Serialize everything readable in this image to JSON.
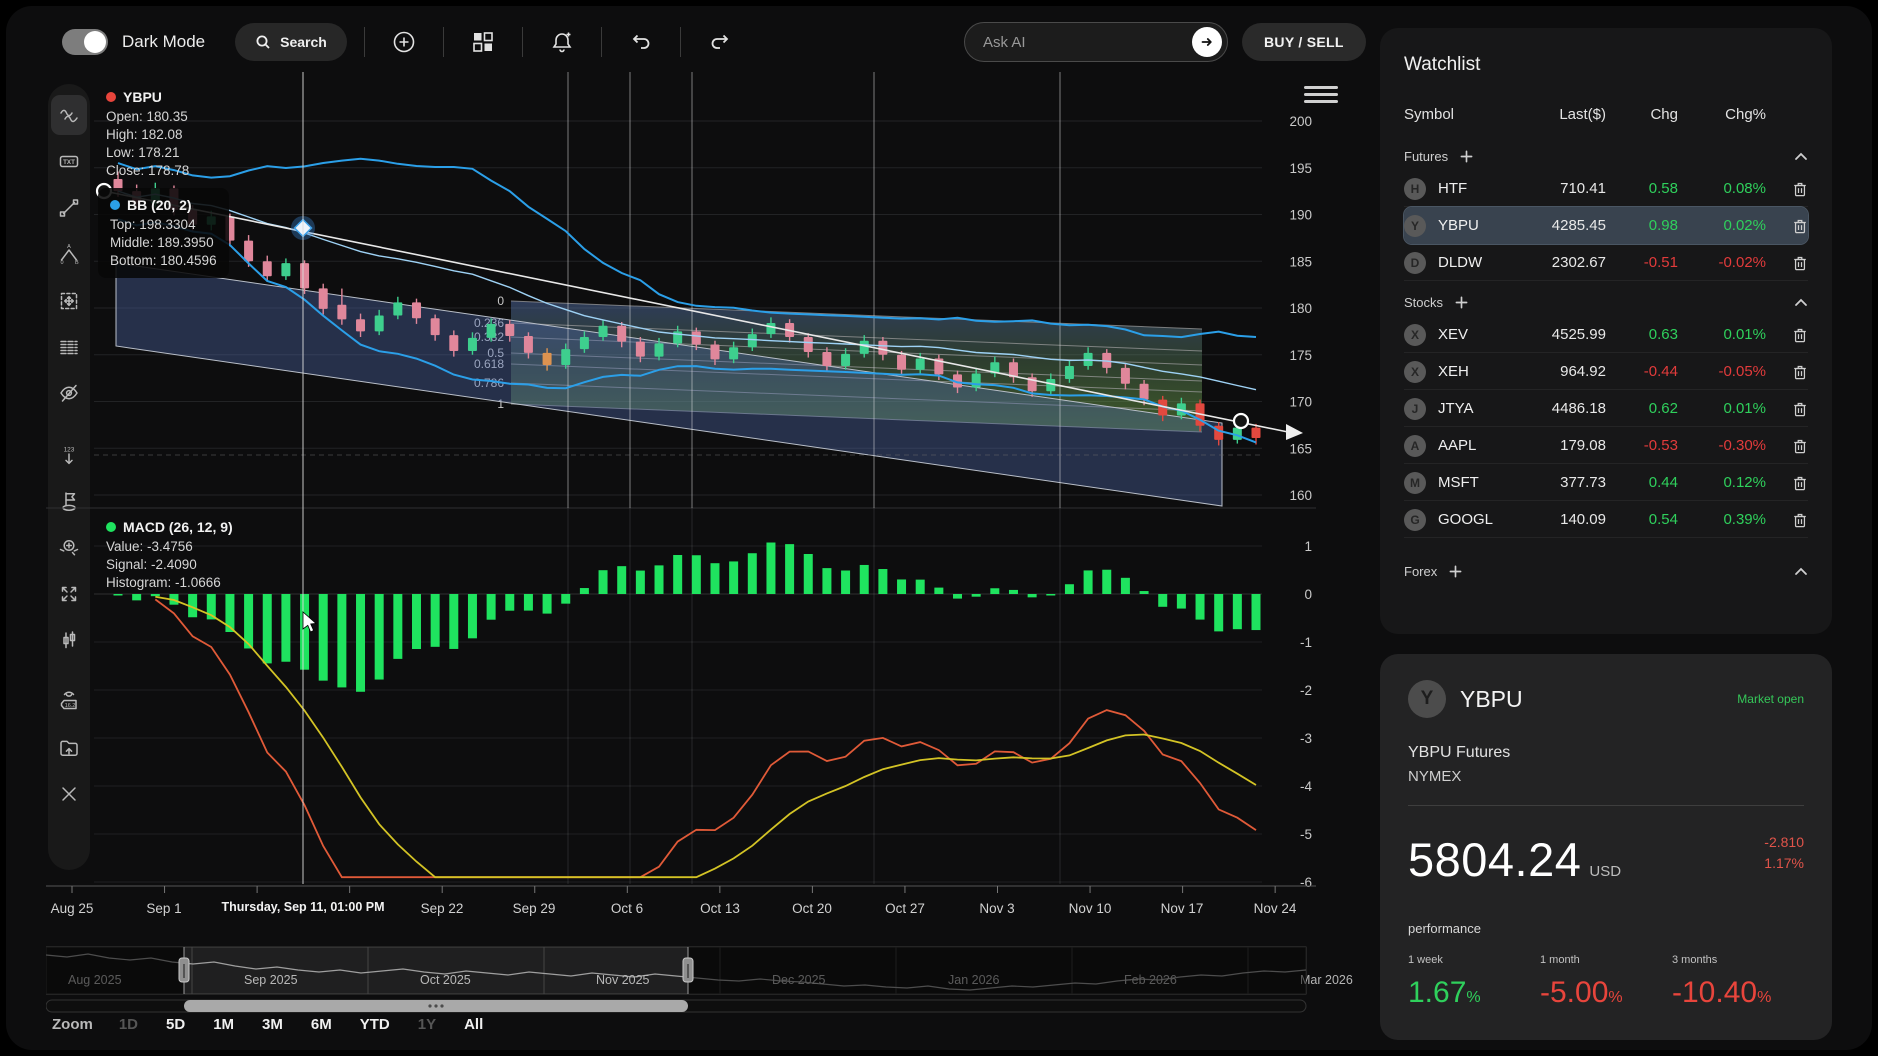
{
  "toolbar": {
    "dark_mode_label": "Dark Mode",
    "search_label": "Search",
    "ask_ai_placeholder": "Ask AI",
    "buy_sell_label": "BUY / SELL"
  },
  "sidebar": {
    "txt_icon_label": "TXT",
    "numbers_icon_label": "123",
    "price_tag_icon_label": "16.2",
    "xabcd_a": "A",
    "xabcd_0": "0",
    "xabcd_b": "B"
  },
  "legends": {
    "ybpu": {
      "title": "YBPU",
      "lines": [
        "Open: 180.35",
        "High: 182.08",
        "Low: 178.21",
        "Close: 178.78"
      ]
    },
    "bb": {
      "title": "BB (20, 2)",
      "lines": [
        "Top: 198.3304",
        "Middle: 189.3950",
        "Bottom: 180.4596"
      ]
    },
    "macd": {
      "title": "MACD (26, 12, 9)",
      "lines": [
        "Value: -3.4756",
        "Signal: -2.4090",
        "Histogram: -1.0666"
      ]
    }
  },
  "crosshair_label": "Thursday, Sep 11, 01:00 PM",
  "range_selector": {
    "zoom_label": "Zoom",
    "buttons": [
      {
        "label": "1D",
        "enabled": false
      },
      {
        "label": "5D",
        "enabled": true
      },
      {
        "label": "1M",
        "enabled": true
      },
      {
        "label": "3M",
        "enabled": true
      },
      {
        "label": "6M",
        "enabled": true
      },
      {
        "label": "YTD",
        "enabled": true
      },
      {
        "label": "1Y",
        "enabled": false
      },
      {
        "label": "All",
        "enabled": true
      }
    ]
  },
  "watchlist": {
    "title": "Watchlist",
    "columns": [
      "Symbol",
      "Last($)",
      "Chg",
      "Chg%"
    ],
    "sections": [
      {
        "name": "Futures",
        "rows": [
          {
            "symbol": "HTF",
            "avatar": "H",
            "last": "710.41",
            "chg": "0.58",
            "chg_pct": "0.08%",
            "direction": "up",
            "selected": false
          },
          {
            "symbol": "YBPU",
            "avatar": "Y",
            "last": "4285.45",
            "chg": "0.98",
            "chg_pct": "0.02%",
            "direction": "up",
            "selected": true
          },
          {
            "symbol": "DLDW",
            "avatar": "D",
            "last": "2302.67",
            "chg": "-0.51",
            "chg_pct": "-0.02%",
            "direction": "down",
            "selected": false
          }
        ]
      },
      {
        "name": "Stocks",
        "rows": [
          {
            "symbol": "XEV",
            "avatar": "X",
            "last": "4525.99",
            "chg": "0.63",
            "chg_pct": "0.01%",
            "direction": "up",
            "selected": false
          },
          {
            "symbol": "XEH",
            "avatar": "X",
            "last": "964.92",
            "chg": "-0.44",
            "chg_pct": "-0.05%",
            "direction": "down",
            "selected": false
          },
          {
            "symbol": "JTYA",
            "avatar": "J",
            "last": "4486.18",
            "chg": "0.62",
            "chg_pct": "0.01%",
            "direction": "up",
            "selected": false
          },
          {
            "symbol": "AAPL",
            "avatar": "A",
            "last": "179.08",
            "chg": "-0.53",
            "chg_pct": "-0.30%",
            "direction": "down",
            "selected": false
          },
          {
            "symbol": "MSFT",
            "avatar": "M",
            "last": "377.73",
            "chg": "0.44",
            "chg_pct": "0.12%",
            "direction": "up",
            "selected": false
          },
          {
            "symbol": "GOOGL",
            "avatar": "G",
            "last": "140.09",
            "chg": "0.54",
            "chg_pct": "0.39%",
            "direction": "up",
            "selected": false
          }
        ]
      },
      {
        "name": "Forex",
        "rows": []
      }
    ]
  },
  "detail_card": {
    "symbol": "YBPU",
    "avatar": "Y",
    "market_status": "Market open",
    "name": "YBPU Futures",
    "exchange": "NYMEX",
    "price": "5804.24",
    "currency": "USD",
    "change": "-2.810",
    "change_pct": "1.17%",
    "performance_label": "performance",
    "performance": [
      {
        "label": "1 week",
        "value": "1.67",
        "suffix": "%",
        "direction": "up"
      },
      {
        "label": "1 month",
        "value": "-5.00",
        "suffix": "%",
        "direction": "down"
      },
      {
        "label": "3 months",
        "value": "-10.40",
        "suffix": "%",
        "direction": "down"
      }
    ]
  },
  "chart_data": {
    "type": "candlestick",
    "symbol": "YBPU",
    "title": "YBPU with Bollinger Bands, channel and Fibonacci drawings; MACD sub-panel",
    "price_axis_ticks": [
      200,
      195,
      190,
      185,
      180,
      175,
      170,
      165,
      160
    ],
    "x_tick_labels": [
      "Aug 25",
      "Sep 1",
      "Sep 22",
      "Sep 29",
      "Oct 6",
      "Oct 13",
      "Oct 20",
      "Oct 27",
      "Nov 3",
      "Nov 10",
      "Nov 17",
      "Nov 24"
    ],
    "candles_ohlc": [
      [
        193.8,
        194.6,
        191.9,
        192.5
      ],
      [
        192.5,
        193.2,
        190.6,
        191.2
      ],
      [
        191.2,
        193.4,
        190.8,
        192.8
      ],
      [
        192.8,
        193.1,
        189.9,
        190.5
      ],
      [
        190.5,
        191.0,
        188.2,
        188.9
      ],
      [
        188.9,
        190.4,
        188.3,
        189.8
      ],
      [
        189.8,
        190.1,
        186.6,
        187.2
      ],
      [
        187.2,
        187.8,
        184.4,
        185.0
      ],
      [
        185.0,
        185.6,
        182.8,
        183.4
      ],
      [
        183.4,
        185.3,
        183.0,
        184.8
      ],
      [
        184.8,
        185.1,
        181.5,
        182.1
      ],
      [
        182.1,
        182.6,
        179.3,
        179.9
      ],
      [
        180.35,
        182.08,
        178.21,
        178.78
      ],
      [
        178.8,
        179.4,
        176.9,
        177.5
      ],
      [
        177.5,
        179.8,
        177.1,
        179.2
      ],
      [
        179.2,
        181.2,
        178.8,
        180.6
      ],
      [
        180.6,
        181.0,
        178.3,
        178.9
      ],
      [
        178.9,
        179.3,
        176.5,
        177.1
      ],
      [
        177.1,
        177.6,
        174.8,
        175.4
      ],
      [
        175.4,
        177.4,
        175.0,
        176.8
      ],
      [
        176.8,
        178.9,
        176.4,
        178.3
      ],
      [
        178.3,
        178.7,
        176.4,
        177.0
      ],
      [
        177.0,
        177.4,
        174.6,
        175.2
      ],
      [
        175.2,
        175.7,
        173.3,
        173.9
      ],
      [
        173.9,
        176.2,
        173.5,
        175.6
      ],
      [
        175.6,
        177.5,
        175.2,
        176.9
      ],
      [
        176.9,
        178.7,
        176.5,
        178.1
      ],
      [
        178.1,
        178.5,
        175.8,
        176.4
      ],
      [
        176.4,
        176.9,
        174.2,
        174.8
      ],
      [
        174.8,
        176.8,
        174.4,
        176.2
      ],
      [
        176.2,
        178.1,
        175.8,
        177.5
      ],
      [
        177.5,
        177.9,
        175.5,
        176.1
      ],
      [
        176.1,
        176.5,
        173.9,
        174.5
      ],
      [
        174.5,
        176.4,
        174.1,
        175.8
      ],
      [
        175.8,
        177.8,
        175.4,
        177.2
      ],
      [
        177.2,
        179.0,
        176.8,
        178.4
      ],
      [
        178.4,
        178.8,
        176.3,
        176.9
      ],
      [
        176.9,
        177.3,
        174.7,
        175.3
      ],
      [
        175.3,
        175.8,
        173.2,
        173.8
      ],
      [
        173.8,
        175.7,
        173.4,
        175.1
      ],
      [
        175.1,
        177.1,
        174.7,
        176.5
      ],
      [
        176.5,
        176.9,
        174.4,
        175.0
      ],
      [
        175.0,
        175.4,
        172.8,
        173.4
      ],
      [
        173.4,
        175.2,
        173.0,
        174.6
      ],
      [
        174.6,
        175.0,
        172.3,
        172.9
      ],
      [
        172.9,
        173.3,
        170.9,
        171.5
      ],
      [
        171.5,
        173.6,
        171.1,
        173.0
      ],
      [
        173.0,
        174.8,
        172.6,
        174.2
      ],
      [
        174.2,
        174.6,
        172.0,
        172.6
      ],
      [
        172.6,
        173.0,
        170.5,
        171.1
      ],
      [
        171.1,
        173.0,
        170.7,
        172.4
      ],
      [
        172.4,
        174.4,
        172.0,
        173.8
      ],
      [
        173.8,
        175.8,
        173.4,
        175.2
      ],
      [
        175.2,
        175.6,
        173.0,
        173.6
      ],
      [
        173.6,
        174.0,
        171.3,
        171.9
      ],
      [
        171.9,
        172.3,
        169.6,
        170.2
      ],
      [
        170.2,
        170.6,
        167.9,
        168.5
      ],
      [
        168.5,
        170.4,
        168.1,
        169.8
      ],
      [
        169.8,
        170.2,
        166.8,
        167.4
      ],
      [
        167.4,
        167.8,
        165.3,
        165.9
      ],
      [
        165.9,
        167.8,
        165.5,
        167.2
      ],
      [
        167.2,
        167.6,
        165.4,
        166.1
      ]
    ],
    "indicators": {
      "bollinger": {
        "period": 20,
        "stddev": 2
      },
      "macd": {
        "params": [
          26,
          12,
          9
        ],
        "axis_ticks": [
          1,
          0,
          -1,
          -2,
          -3,
          -4,
          -5,
          -6
        ]
      }
    },
    "fibonacci_levels": [
      "0",
      "0.236",
      "0.382",
      "0.5",
      "0.618",
      "0.786",
      "1"
    ],
    "navigator": {
      "months": [
        "Aug 2025",
        "Sep 2025",
        "Oct 2025",
        "Nov 2025",
        "Dec 2025",
        "Jan 2026",
        "Feb 2026",
        "Mar 2026"
      ],
      "values": [
        192,
        190,
        193,
        189,
        187,
        189,
        185,
        183,
        185,
        181,
        178,
        180,
        177,
        175,
        177,
        174,
        176,
        178,
        175,
        173,
        176,
        174,
        172,
        175,
        173,
        171,
        174,
        172,
        170,
        173,
        171,
        169,
        167,
        166,
        168,
        166,
        165,
        163,
        161,
        162,
        160,
        159,
        161,
        158,
        157,
        159,
        161,
        160,
        162,
        164,
        163,
        166,
        168,
        167,
        170,
        172,
        171,
        174,
        176,
        175,
        177
      ]
    },
    "colors": {
      "up": "#3ecf8e",
      "down": "#e0879b",
      "down_strong": "#e2493f",
      "bollinger": "#2b9fe8",
      "macd_histogram": "#1fe35f",
      "macd_line": "#e05a38",
      "signal_line": "#d3c325"
    }
  }
}
